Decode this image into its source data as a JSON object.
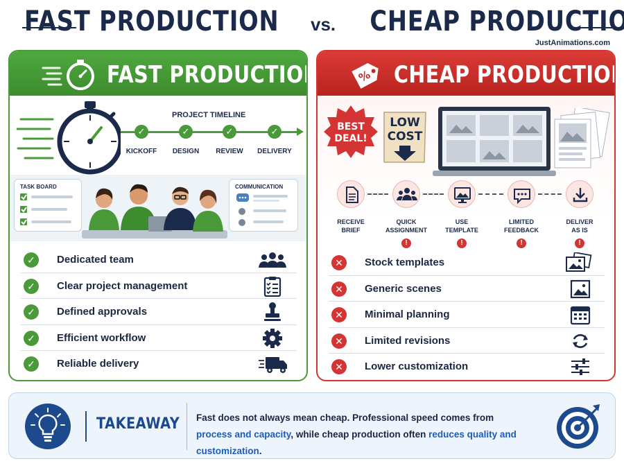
{
  "header": {
    "title_left": "FAST PRODUCTION",
    "title_vs": "vs.",
    "title_right": "CHEAP PRODUCTION",
    "brand": "JustAnimations.com"
  },
  "fast": {
    "title": "FAST PRODUCTION",
    "timeline_label": "PROJECT TIMELINE",
    "timeline_steps": [
      "KICKOFF",
      "DESIGN",
      "REVIEW",
      "DELIVERY"
    ],
    "task_board_label": "TASK BOARD",
    "communication_label": "COMMUNICATION",
    "items": [
      {
        "label": "Dedicated team",
        "icon": "team-icon"
      },
      {
        "label": "Clear project management",
        "icon": "clipboard-checklist-icon"
      },
      {
        "label": "Defined approvals",
        "icon": "approval-stamp-icon"
      },
      {
        "label": "Efficient workflow",
        "icon": "gear-icon"
      },
      {
        "label": "Reliable delivery",
        "icon": "delivery-truck-icon"
      }
    ]
  },
  "cheap": {
    "title": "CHEAP PRODUCTION",
    "badge_best_line1": "BEST",
    "badge_best_line2": "DEAL!",
    "badge_low_line1": "LOW",
    "badge_low_line2": "COST",
    "process": [
      {
        "line1": "RECEIVE",
        "line2": "BRIEF",
        "alert": false
      },
      {
        "line1": "QUICK",
        "line2": "ASSIGNMENT",
        "alert": true
      },
      {
        "line1": "USE",
        "line2": "TEMPLATE",
        "alert": true
      },
      {
        "line1": "LIMITED",
        "line2": "FEEDBACK",
        "alert": true
      },
      {
        "line1": "DELIVER",
        "line2": "AS IS",
        "alert": true
      }
    ],
    "items": [
      {
        "label": "Stock templates",
        "icon": "stacked-images-icon"
      },
      {
        "label": "Generic scenes",
        "icon": "image-icon"
      },
      {
        "label": "Minimal planning",
        "icon": "calendar-icon"
      },
      {
        "label": "Limited revisions",
        "icon": "refresh-icon"
      },
      {
        "label": "Lower customization",
        "icon": "sliders-icon"
      }
    ]
  },
  "takeaway": {
    "title": "TAKEAWAY",
    "text_part1": "Fast does not always mean cheap. Professional speed comes from",
    "text_highlight1": "process and capacity",
    "text_part2": ", while cheap production often ",
    "text_highlight2": "reduces quality and customization",
    "text_part3": "."
  },
  "colors": {
    "fast_green": "#4a9a3a",
    "cheap_red": "#d43434",
    "navy": "#1b2a4a",
    "takeaway_blue": "#1d5cb8"
  }
}
